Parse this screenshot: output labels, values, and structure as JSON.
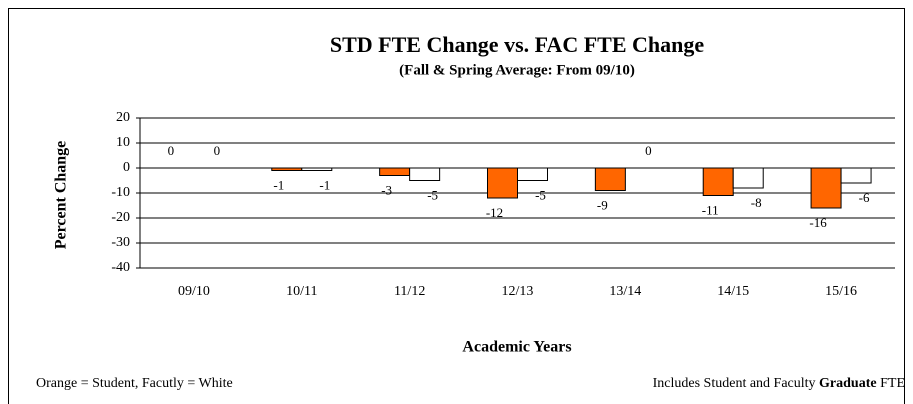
{
  "chart_data": {
    "type": "bar",
    "title": "STD FTE Change vs. FAC FTE Change",
    "subtitle": "(Fall & Spring Average: From 09/10)",
    "y_label": "Percent Change",
    "x_label": "Academic Years",
    "categories": [
      "09/10",
      "10/11",
      "11/12",
      "12/13",
      "13/14",
      "14/15",
      "15/16"
    ],
    "series": [
      {
        "color": "#ff6600",
        "values": [
          0,
          -1,
          -3,
          -12,
          -9,
          -11,
          -16
        ]
      },
      {
        "color": "#ffffff",
        "values": [
          0,
          -1,
          -5,
          -5,
          0,
          -8,
          -6
        ]
      }
    ],
    "ylim": [
      -40,
      20
    ],
    "yticks": [
      -40,
      -30,
      -20,
      -10,
      0,
      10,
      20
    ],
    "grid": true,
    "note_left": "Orange = Student, Facutly = White",
    "note_right": [
      "Includes Student and Faculty",
      "Graduate",
      "FTE"
    ]
  }
}
